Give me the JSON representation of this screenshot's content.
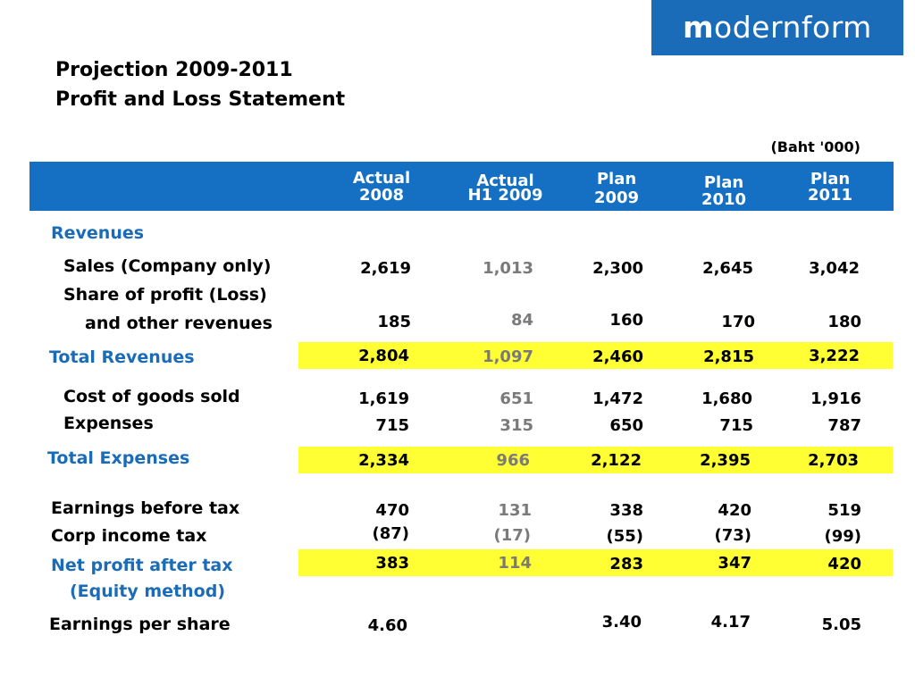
{
  "logo": {
    "first_letter": "m",
    "rest": "odernform"
  },
  "title": {
    "line1": "Projection 2009-2011",
    "line2": "Profit and Loss Statement"
  },
  "unit": "(Baht '000)",
  "columns": [
    {
      "line1": "Actual",
      "line2": "2008"
    },
    {
      "line1": "Actual",
      "line2": "H1 2009"
    },
    {
      "line1": "Plan",
      "line2": "2009"
    },
    {
      "line1": "Plan",
      "line2": "2010"
    },
    {
      "line1": "Plan",
      "line2": "2011"
    }
  ],
  "rows": {
    "revenues_heading": "Revenues",
    "sales": {
      "label": "Sales (Company only)",
      "values": [
        "2,619",
        "1,013",
        "2,300",
        "2,645",
        "3,042"
      ]
    },
    "share_profit": {
      "label1": "Share of profit (Loss)",
      "label2": "and other revenues",
      "values": [
        "185",
        "84",
        "160",
        "170",
        "180"
      ]
    },
    "total_revenues": {
      "label": "Total Revenues",
      "values": [
        "2,804",
        "1,097",
        "2,460",
        "2,815",
        "3,222"
      ]
    },
    "cogs": {
      "label": "Cost of goods sold",
      "values": [
        "1,619",
        "651",
        "1,472",
        "1,680",
        "1,916"
      ]
    },
    "expenses": {
      "label": "Expenses",
      "values": [
        "715",
        "315",
        "650",
        "715",
        "787"
      ]
    },
    "total_expenses": {
      "label": "Total Expenses",
      "values": [
        "2,334",
        "966",
        "2,122",
        "2,395",
        "2,703"
      ]
    },
    "ebt": {
      "label": "Earnings before tax",
      "values": [
        "470",
        "131",
        "338",
        "420",
        "519"
      ]
    },
    "corp_tax": {
      "label": "Corp income tax",
      "values": [
        "(87)",
        "(17)",
        "(55)",
        "(73)",
        "(99)"
      ]
    },
    "net_profit": {
      "label1": "Net profit after tax",
      "label2": "(Equity method)",
      "values": [
        "383",
        "114",
        "283",
        "347",
        "420"
      ]
    },
    "eps": {
      "label": "Earnings per share",
      "values": [
        "4.60",
        "",
        "3.40",
        "4.17",
        "5.05"
      ]
    }
  },
  "colors": {
    "brand_blue": "#1b6cb8",
    "header_blue": "#1570c4",
    "highlight": "#ffff33",
    "muted": "#7a7a7a"
  }
}
